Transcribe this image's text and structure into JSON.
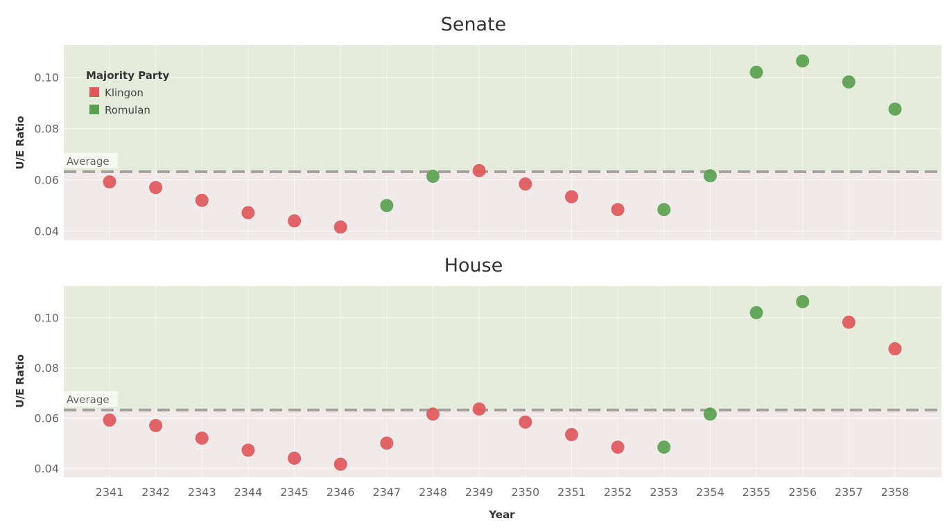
{
  "chart_data": [
    {
      "type": "scatter",
      "title": "Senate",
      "xlabel": "Year",
      "ylabel": "U/E Ratio",
      "ylim": [
        0.036,
        0.113
      ],
      "yticks": [
        0.04,
        0.06,
        0.08,
        0.1
      ],
      "ytick_labels": [
        "0.04",
        "0.06",
        "0.08",
        "0.10"
      ],
      "x": [
        2341,
        2342,
        2343,
        2344,
        2345,
        2346,
        2347,
        2348,
        2349,
        2350,
        2351,
        2352,
        2353,
        2354,
        2355,
        2356,
        2357,
        2358
      ],
      "y": [
        0.0592,
        0.057,
        0.052,
        0.0472,
        0.044,
        0.0416,
        0.05,
        0.0614,
        0.0636,
        0.0584,
        0.0534,
        0.0484,
        0.0484,
        0.0616,
        0.102,
        0.1064,
        0.0982,
        0.0876
      ],
      "party": [
        "Klingon",
        "Klingon",
        "Klingon",
        "Klingon",
        "Klingon",
        "Klingon",
        "Romulan",
        "Romulan",
        "Klingon",
        "Klingon",
        "Klingon",
        "Klingon",
        "Romulan",
        "Romulan",
        "Romulan",
        "Romulan",
        "Romulan",
        "Romulan"
      ],
      "average": 0.0632,
      "average_label": "Average",
      "grid": true,
      "legend": {
        "title": "Majority Party",
        "placement": "top-left",
        "entries": [
          {
            "name": "Klingon",
            "color": "#e15759"
          },
          {
            "name": "Romulan",
            "color": "#59a14f"
          }
        ]
      }
    },
    {
      "type": "scatter",
      "title": "House",
      "xlabel": "Year",
      "ylabel": "U/E Ratio",
      "ylim": [
        0.036,
        0.113
      ],
      "yticks": [
        0.04,
        0.06,
        0.08,
        0.1
      ],
      "ytick_labels": [
        "0.04",
        "0.06",
        "0.08",
        "0.10"
      ],
      "x": [
        2341,
        2342,
        2343,
        2344,
        2345,
        2346,
        2347,
        2348,
        2349,
        2350,
        2351,
        2352,
        2353,
        2354,
        2355,
        2356,
        2357,
        2358
      ],
      "y": [
        0.0592,
        0.057,
        0.052,
        0.0472,
        0.044,
        0.0416,
        0.05,
        0.0616,
        0.0636,
        0.0584,
        0.0534,
        0.0484,
        0.0484,
        0.0616,
        0.102,
        0.1064,
        0.0982,
        0.0876
      ],
      "party": [
        "Klingon",
        "Klingon",
        "Klingon",
        "Klingon",
        "Klingon",
        "Klingon",
        "Klingon",
        "Klingon",
        "Klingon",
        "Klingon",
        "Klingon",
        "Klingon",
        "Romulan",
        "Romulan",
        "Romulan",
        "Romulan",
        "Klingon",
        "Klingon"
      ],
      "average": 0.0632,
      "average_label": "Average",
      "grid": true
    }
  ],
  "x_axis": {
    "label": "Year",
    "ticks": [
      "2341",
      "2342",
      "2343",
      "2344",
      "2345",
      "2346",
      "2347",
      "2348",
      "2349",
      "2350",
      "2351",
      "2352",
      "2353",
      "2354",
      "2355",
      "2356",
      "2357",
      "2358"
    ]
  },
  "colors": {
    "Klingon": "#e15759",
    "Romulan": "#59a14f",
    "above_band": "#e6ecdb",
    "below_band": "#f0ebea",
    "average_line": "#a3a09e"
  }
}
